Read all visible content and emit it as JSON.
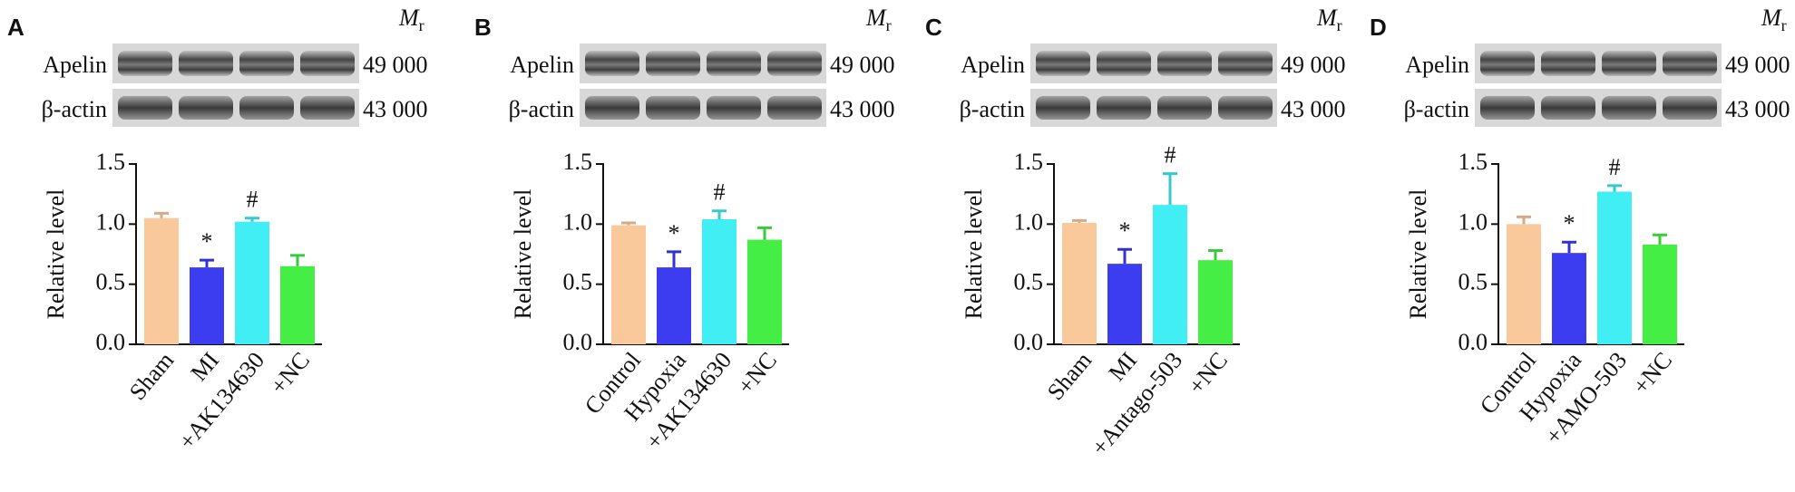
{
  "chart_data": [
    {
      "type": "bar",
      "panel": "A",
      "blot_labels": [
        "Apelin",
        "β-actin"
      ],
      "mr_main": "M",
      "mr_sub": "r",
      "mr_values": [
        "49 000",
        "43 000"
      ],
      "ylabel": "Relative level",
      "categories": [
        "Sham",
        "MI",
        "+AK134630",
        "+NC"
      ],
      "values": [
        1.05,
        0.64,
        1.02,
        0.65
      ],
      "errors": [
        0.04,
        0.06,
        0.03,
        0.09
      ],
      "markers": [
        null,
        "*",
        "#",
        null
      ],
      "colors": [
        "#f9c99c",
        "#3c3cf0",
        "#40eef4",
        "#45ee45"
      ],
      "ylim": [
        0,
        1.5
      ],
      "yticks": [
        {
          "value": 0,
          "label": "0.0"
        },
        0.5,
        {
          "value": 1,
          "label": "1.0"
        },
        1.5
      ]
    },
    {
      "type": "bar",
      "panel": "B",
      "blot_labels": [
        "Apelin",
        "β-actin"
      ],
      "mr_main": "M",
      "mr_sub": "r",
      "mr_values": [
        "49 000",
        "43 000"
      ],
      "ylabel": "Relative level",
      "categories": [
        "Control",
        "Hypoxia",
        "+AK134630",
        "+NC"
      ],
      "values": [
        0.99,
        0.64,
        1.04,
        0.87
      ],
      "errors": [
        0.02,
        0.13,
        0.07,
        0.1
      ],
      "markers": [
        null,
        "*",
        "#",
        null
      ],
      "colors": [
        "#f9c99c",
        "#3c3cf0",
        "#40eef4",
        "#45ee45"
      ],
      "ylim": [
        0,
        1.5
      ],
      "yticks": [
        {
          "value": 0,
          "label": "0.0"
        },
        0.5,
        {
          "value": 1,
          "label": "1.0"
        },
        1.5
      ]
    },
    {
      "type": "bar",
      "panel": "C",
      "blot_labels": [
        "Apelin",
        "β-actin"
      ],
      "mr_main": "M",
      "mr_sub": "r",
      "mr_values": [
        "49 000",
        "43 000"
      ],
      "ylabel": "Relative level",
      "categories": [
        "Sham",
        "MI",
        "+Antago-503",
        "+NC"
      ],
      "values": [
        1.01,
        0.67,
        1.16,
        0.7
      ],
      "errors": [
        0.02,
        0.12,
        0.26,
        0.08
      ],
      "markers": [
        null,
        "*",
        "#",
        null
      ],
      "colors": [
        "#f9c99c",
        "#3c3cf0",
        "#40eef4",
        "#45ee45"
      ],
      "ylim": [
        0,
        1.5
      ],
      "yticks": [
        {
          "value": 0,
          "label": "0.0"
        },
        0.5,
        {
          "value": 1,
          "label": "1.0"
        },
        1.5
      ]
    },
    {
      "type": "bar",
      "panel": "D",
      "blot_labels": [
        "Apelin",
        "β-actin"
      ],
      "mr_main": "M",
      "mr_sub": "r",
      "mr_values": [
        "49 000",
        "43 000"
      ],
      "ylabel": "Relative level",
      "categories": [
        "Control",
        "Hypoxia",
        "+AMO-503",
        "+NC"
      ],
      "values": [
        1.0,
        0.76,
        1.27,
        0.83
      ],
      "errors": [
        0.06,
        0.09,
        0.05,
        0.08
      ],
      "markers": [
        null,
        "*",
        "#",
        null
      ],
      "colors": [
        "#f9c99c",
        "#3c3cf0",
        "#40eef4",
        "#45ee45"
      ],
      "ylim": [
        0,
        1.5
      ],
      "yticks": [
        {
          "value": 0,
          "label": "0.0"
        },
        0.5,
        {
          "value": 1,
          "label": "1.0"
        },
        1.5
      ]
    }
  ]
}
